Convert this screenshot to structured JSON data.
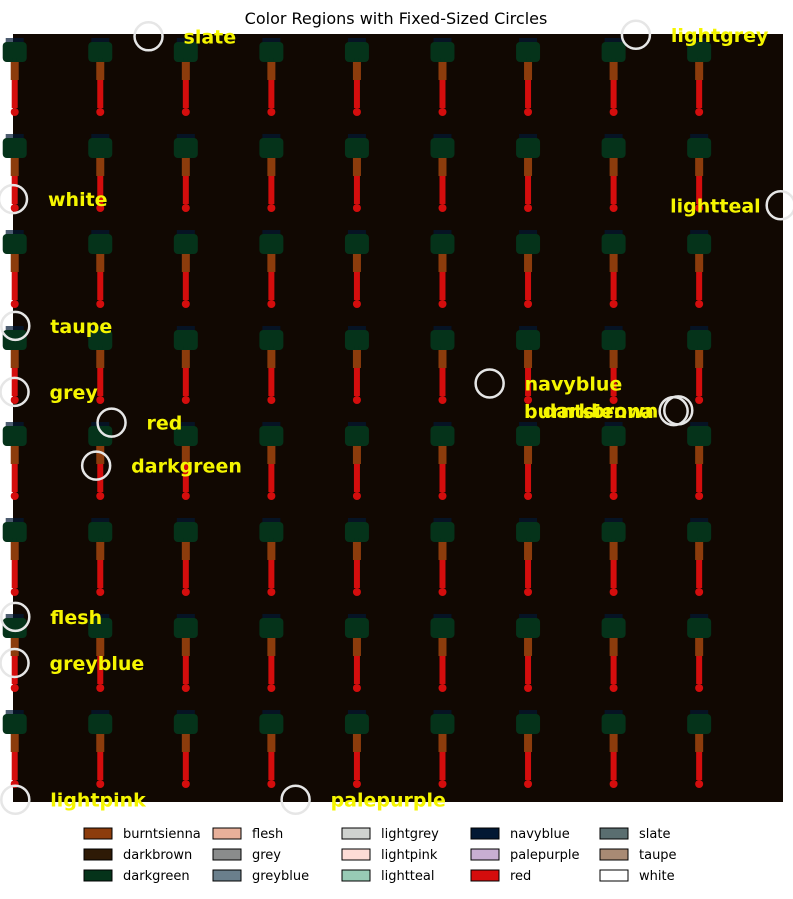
{
  "chart_data": {
    "type": "scatter",
    "title": "Color Regions with Fixed-Sized Circles",
    "background_color": "#110802",
    "circle_color": "#e6e6e6",
    "label_color": "#f5f500",
    "image_grid": {
      "columns": 9,
      "rows": 8
    },
    "points": [
      {
        "label": "slate",
        "x": 0.176,
        "y": 0.003
      },
      {
        "label": "lightgrey",
        "x": 0.809,
        "y": 0.001
      },
      {
        "label": "white",
        "x": 0.0,
        "y": 0.215
      },
      {
        "label": "lightteal",
        "x": 0.997,
        "y": 0.223
      },
      {
        "label": "taupe",
        "x": 0.003,
        "y": 0.38
      },
      {
        "label": "grey",
        "x": 0.002,
        "y": 0.466
      },
      {
        "label": "red",
        "x": 0.128,
        "y": 0.506
      },
      {
        "label": "darkgreen",
        "x": 0.108,
        "y": 0.562
      },
      {
        "label": "navyblue",
        "x": 0.619,
        "y": 0.455
      },
      {
        "label": "burntsienna",
        "x": 0.858,
        "y": 0.491
      },
      {
        "label": "darkbrown",
        "x": 0.864,
        "y": 0.49
      },
      {
        "label": "flesh",
        "x": 0.003,
        "y": 0.759
      },
      {
        "label": "greyblue",
        "x": 0.002,
        "y": 0.819
      },
      {
        "label": "lightpink",
        "x": 0.003,
        "y": 0.997
      },
      {
        "label": "palepurple",
        "x": 0.367,
        "y": 0.997
      }
    ],
    "legend": {
      "placement": "bottom",
      "columns": 5,
      "items": [
        {
          "label": "burntsienna",
          "color": "#8c3c0c"
        },
        {
          "label": "darkbrown",
          "color": "#2e1a06"
        },
        {
          "label": "darkgreen",
          "color": "#05331a"
        },
        {
          "label": "flesh",
          "color": "#e8b09a"
        },
        {
          "label": "grey",
          "color": "#8a8c8c"
        },
        {
          "label": "greyblue",
          "color": "#6a7f8c"
        },
        {
          "label": "lightgrey",
          "color": "#cfd2cf"
        },
        {
          "label": "lightpink",
          "color": "#fddcd6"
        },
        {
          "label": "lightteal",
          "color": "#98cbb5"
        },
        {
          "label": "navyblue",
          "color": "#021833"
        },
        {
          "label": "palepurple",
          "color": "#c8aed2"
        },
        {
          "label": "red",
          "color": "#d40d0d"
        },
        {
          "label": "slate",
          "color": "#5a6e70"
        },
        {
          "label": "taupe",
          "color": "#a88a74"
        },
        {
          "label": "white",
          "color": "#ffffff"
        }
      ]
    }
  }
}
